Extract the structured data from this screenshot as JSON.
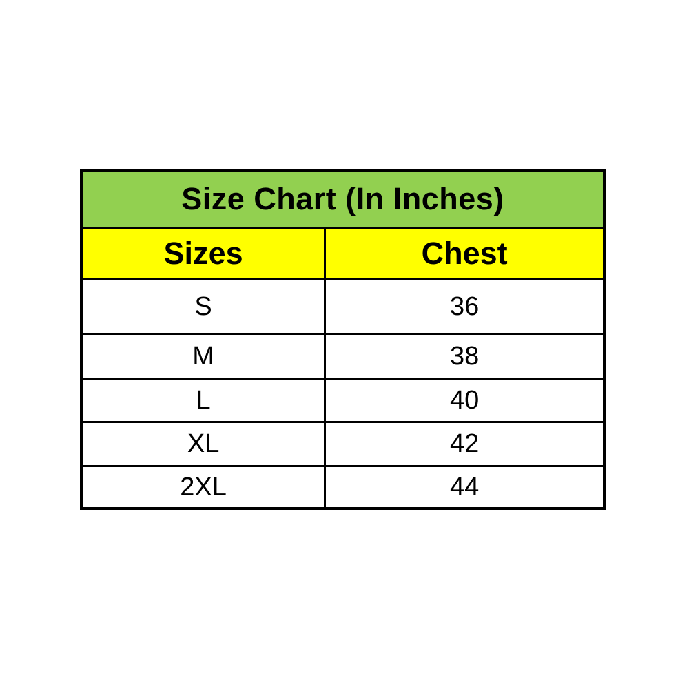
{
  "chart_data": {
    "type": "table",
    "title": "Size Chart (In Inches)",
    "columns": [
      "Sizes",
      "Chest"
    ],
    "rows": [
      [
        "S",
        36
      ],
      [
        "M",
        38
      ],
      [
        "L",
        40
      ],
      [
        "XL",
        42
      ],
      [
        "2XL",
        44
      ]
    ],
    "layout": {
      "title_row": "merged across both columns",
      "grid": "thick black borders on all cells",
      "text_align": "center"
    }
  },
  "colors": {
    "title_bg": "#92d050",
    "header_bg": "#ffff00",
    "cell_bg": "#ffffff",
    "border": "#000000",
    "text": "#000000"
  }
}
